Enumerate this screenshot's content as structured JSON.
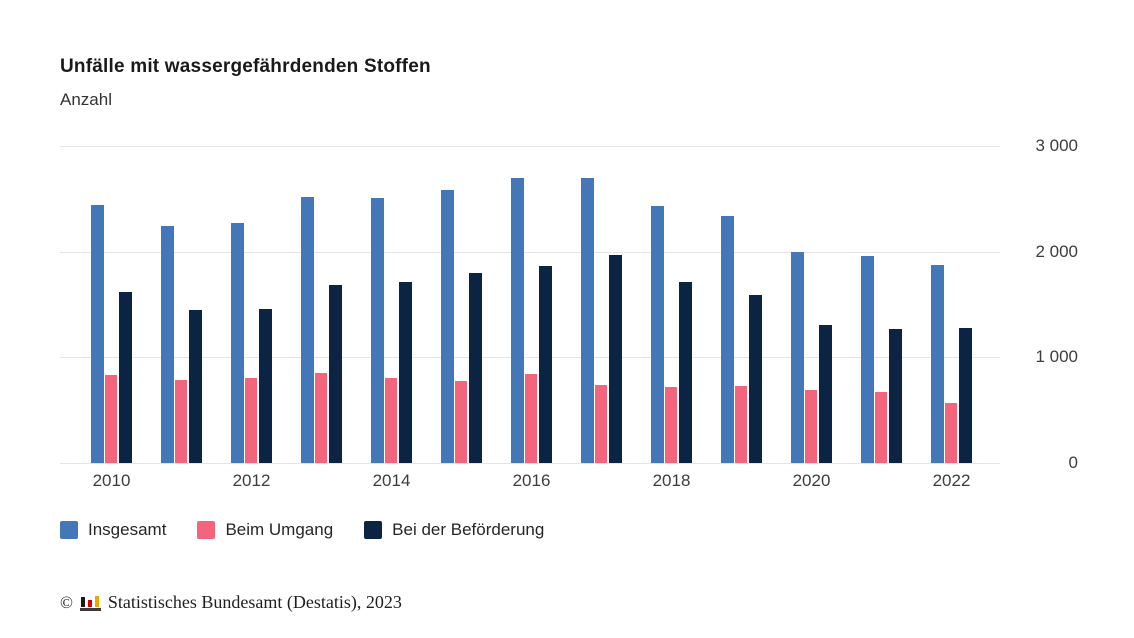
{
  "title": "Unfälle mit wassergefährdenden Stoffen",
  "subtitle": "Anzahl",
  "colors": {
    "insgesamt": "#4377b8",
    "beim_umgang": "#f2657c",
    "befoerderung": "#0b2444",
    "gridline": "#e4e4e4"
  },
  "y_axis": {
    "ticks": [
      {
        "value": 3000,
        "label": "3 000"
      },
      {
        "value": 2000,
        "label": "2 000"
      },
      {
        "value": 1000,
        "label": "1 000"
      },
      {
        "value": 0,
        "label": "0"
      }
    ]
  },
  "x_axis": {
    "visible_ticks": [
      "2010",
      "2012",
      "2014",
      "2016",
      "2018",
      "2020",
      "2022"
    ]
  },
  "chart_data": {
    "type": "bar",
    "title": "Unfälle mit wassergefährdenden Stoffen",
    "ylabel": "Anzahl",
    "ylim": [
      0,
      3000
    ],
    "grid": true,
    "legend_position": "bottom",
    "categories": [
      2010,
      2011,
      2012,
      2013,
      2014,
      2015,
      2016,
      2017,
      2018,
      2019,
      2020,
      2021,
      2022
    ],
    "series": [
      {
        "name": "Insgesamt",
        "color": "#4377b8",
        "values": [
          2440,
          2240,
          2270,
          2520,
          2510,
          2580,
          2700,
          2700,
          2430,
          2340,
          2000,
          1960,
          1870
        ]
      },
      {
        "name": "Beim Umgang",
        "color": "#f2657c",
        "values": [
          830,
          790,
          800,
          850,
          800,
          780,
          840,
          740,
          720,
          730,
          690,
          670,
          570
        ]
      },
      {
        "name": "Bei der Beförderung",
        "color": "#0b2444",
        "values": [
          1620,
          1450,
          1460,
          1680,
          1710,
          1800,
          1860,
          1970,
          1710,
          1590,
          1310,
          1270,
          1280
        ]
      }
    ]
  },
  "footer": {
    "copyright": "©",
    "logo_icon": "destatis-bar-chart-logo",
    "text": "Statistisches Bundesamt (Destatis), 2023"
  }
}
